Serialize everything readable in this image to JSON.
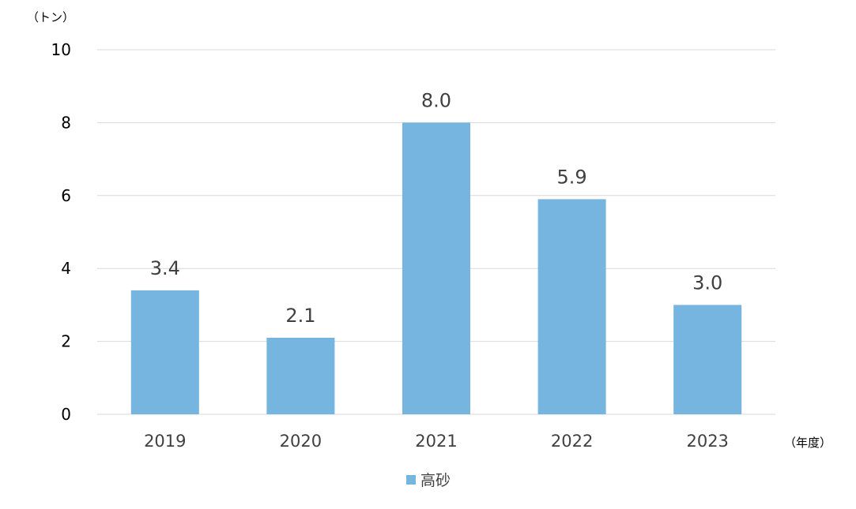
{
  "chart_data": {
    "type": "bar",
    "title": "",
    "ylabel": "（トン）",
    "xlabel": "（年度）",
    "categories": [
      "2019",
      "2020",
      "2021",
      "2022",
      "2023"
    ],
    "series": [
      {
        "name": "高砂",
        "values": [
          3.4,
          2.1,
          8.0,
          5.9,
          3.0
        ],
        "color": "#75B5DF"
      }
    ],
    "data_labels": [
      "3.4",
      "2.1",
      "8.0",
      "5.9",
      "3.0"
    ],
    "yticks": [
      0,
      2,
      4,
      6,
      8,
      10
    ],
    "ylim": [
      0,
      10
    ],
    "grid": true,
    "gridline_color": "#D9D9D9",
    "legend_position": "bottom"
  }
}
